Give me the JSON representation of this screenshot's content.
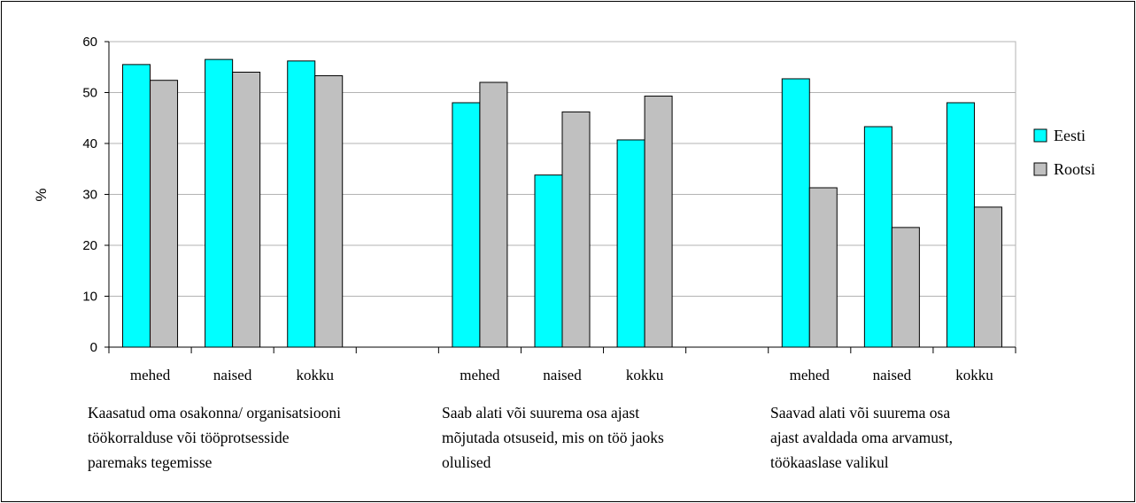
{
  "chart_data": {
    "type": "bar",
    "ylabel": "%",
    "ylim": [
      0,
      60
    ],
    "yticks": [
      "0",
      "10",
      "20",
      "30",
      "40",
      "50",
      "60"
    ],
    "grid": true,
    "legend_position": "right",
    "colors": {
      "Eesti": "#00ffff",
      "Rootsi": "#c0c0c0"
    },
    "groups": [
      {
        "label_lines": [
          "Kaasatud oma osakonna/ organisatsiooni",
          "töökorralduse või tööprotsesside",
          "paremaks tegemisse"
        ],
        "categories": [
          "mehed",
          "naised",
          "kokku"
        ]
      },
      {
        "label_lines": [
          "Saab alati või suurema osa ajast",
          "mõjutada otsuseid, mis on töö jaoks",
          "olulised"
        ],
        "categories": [
          "mehed",
          "naised",
          "kokku"
        ]
      },
      {
        "label_lines": [
          "Saavad alati või suurema osa",
          "ajast avaldada oma arvamust,",
          "töökaaslase valikul"
        ],
        "categories": [
          "mehed",
          "naised",
          "kokku"
        ]
      }
    ],
    "series": [
      {
        "name": "Eesti",
        "values": [
          [
            55.5,
            56.5,
            56.2
          ],
          [
            48.0,
            33.8,
            40.7
          ],
          [
            52.7,
            43.3,
            48.0
          ]
        ]
      },
      {
        "name": "Rootsi",
        "values": [
          [
            52.4,
            54.0,
            53.3
          ],
          [
            52.0,
            46.2,
            49.3
          ],
          [
            31.3,
            23.5,
            27.5
          ]
        ]
      }
    ]
  }
}
